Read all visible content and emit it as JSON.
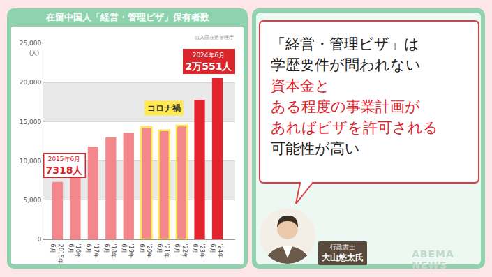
{
  "chart_data": {
    "type": "bar",
    "title": "在留中国人「経営・管理ビザ」保有者数",
    "source": "出入国在留管理庁",
    "ylabel": "(人)",
    "categories": [
      "2015年\n6月",
      "'16年\n6月",
      "'17年\n6月",
      "'18年\n6月",
      "'19年\n6月",
      "'20年\n6月",
      "'21年\n6月",
      "'22年\n6月",
      "'23年\n6月",
      "'24年\n6月"
    ],
    "values": [
      7318,
      10000,
      11800,
      13000,
      13600,
      14300,
      13900,
      14500,
      17800,
      20551
    ],
    "colors": [
      "#f4878c",
      "#f4878c",
      "#f4878c",
      "#f4878c",
      "#f4878c",
      "#f4878c",
      "#f4878c",
      "#f4878c",
      "#e0232c",
      "#e0232c"
    ],
    "ylim": [
      0,
      25000
    ],
    "yticks": [
      0,
      {
        "value": 5000,
        "label": "5,000"
      },
      {
        "value": 10000,
        "label": "10,000"
      },
      {
        "value": 15000,
        "label": "15,000"
      },
      {
        "value": 20000,
        "label": "20,000"
      },
      {
        "value": 25000,
        "label": "25,000"
      }
    ],
    "grid": true,
    "annotations": [
      {
        "category": "2015年\n6月",
        "lines": [
          "2015年6月",
          "7318人"
        ]
      },
      {
        "category": "'24年\n6月",
        "lines": [
          "2024年6月",
          "2万551人"
        ]
      },
      {
        "categories": [
          "'20年\n6月",
          "'21年\n6月",
          "'22年\n6月"
        ],
        "text": "コロナ禍"
      }
    ]
  },
  "quote": {
    "lines": [
      {
        "text": "「経営・管理ビザ」は",
        "color": "#222222"
      },
      {
        "text": "学歴要件が問われない",
        "color": "#222222"
      },
      {
        "text": "資本金と",
        "color": "#e0202a"
      },
      {
        "text": "ある程度の事業計画が",
        "color": "#e0202a"
      },
      {
        "text": "あればビザを許可される",
        "color": "#e0202a"
      },
      {
        "text": "可能性が高い",
        "color": "#222222"
      }
    ]
  },
  "speaker": {
    "role": "行政書士",
    "name": "大山悠太氏"
  },
  "logo": "ABEMA NEWS"
}
